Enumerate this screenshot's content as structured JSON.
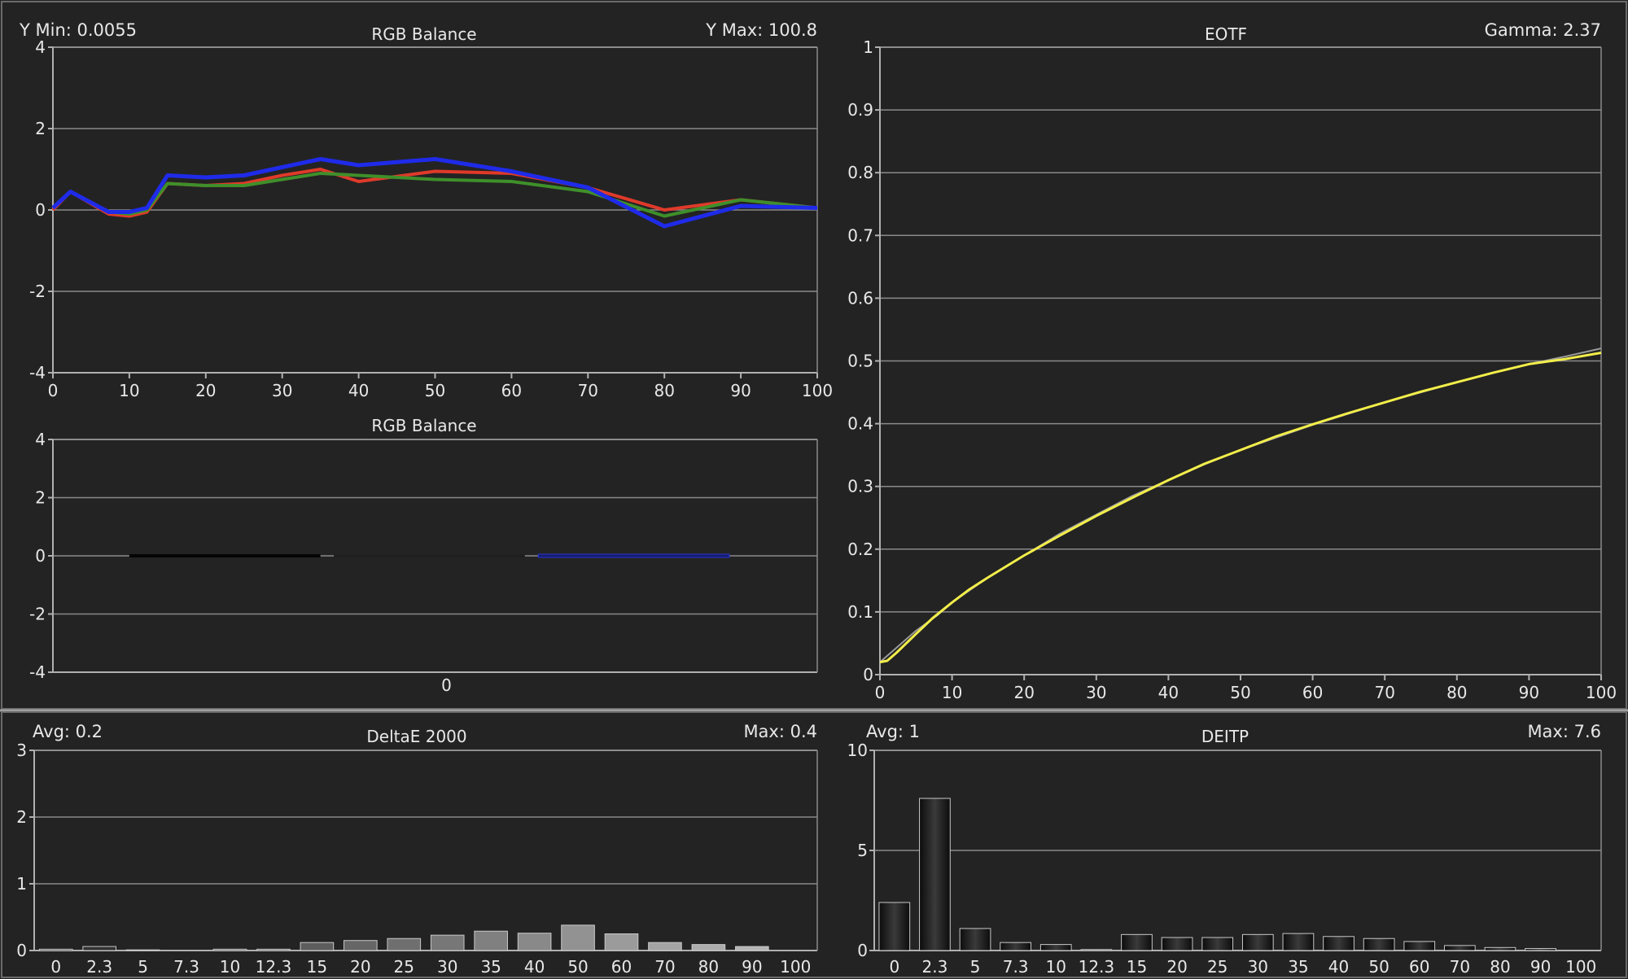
{
  "panels": {
    "rgb_top": {
      "title": "RGB Balance",
      "left_stat": "Y Min: 0.0055",
      "right_stat": "Y Max: 100.8"
    },
    "rgb_bottom": {
      "title": "RGB Balance"
    },
    "eotf": {
      "title": "EOTF",
      "right_stat": "Gamma: 2.37"
    },
    "de2000": {
      "title": "DeltaE 2000",
      "left_stat": "Avg: 0.2",
      "right_stat": "Max: 0.4"
    },
    "deitp": {
      "title": "DEITP",
      "left_stat": "Avg: 1",
      "right_stat": "Max: 7.6"
    }
  },
  "colors": {
    "background": "#232323",
    "grid": "#8a8a8a",
    "red": "#e03a2a",
    "green": "#3f8f2a",
    "blue": "#1f2be8",
    "yellow": "#f2ee4a",
    "reference": "#9a9a9a"
  },
  "chart_data": [
    {
      "id": "rgb_top",
      "type": "line",
      "title": "RGB Balance",
      "xlim": [
        0,
        100
      ],
      "ylim": [
        -4,
        4
      ],
      "xticks": [
        "0",
        "10",
        "20",
        "30",
        "40",
        "50",
        "60",
        "70",
        "80",
        "90",
        "100"
      ],
      "yticks": [
        "4",
        "2",
        "0",
        "-2",
        "-4"
      ],
      "grid": true,
      "series": [
        {
          "color": "red",
          "x": [
            0,
            2.3,
            7.3,
            10,
            12.3,
            15,
            20,
            25,
            30,
            35,
            40,
            50,
            60,
            70,
            80,
            90,
            100
          ],
          "y": [
            0.0,
            0.45,
            -0.1,
            -0.15,
            -0.05,
            0.65,
            0.6,
            0.65,
            0.85,
            1.0,
            0.7,
            0.95,
            0.9,
            0.55,
            0.0,
            0.25,
            0.05
          ]
        },
        {
          "color": "green",
          "x": [
            0,
            2.3,
            7.3,
            10,
            12.3,
            15,
            20,
            25,
            30,
            35,
            40,
            50,
            60,
            70,
            80,
            90,
            100
          ],
          "y": [
            0.05,
            0.45,
            -0.05,
            -0.1,
            0.0,
            0.65,
            0.6,
            0.6,
            0.75,
            0.9,
            0.85,
            0.75,
            0.7,
            0.45,
            -0.15,
            0.25,
            0.05
          ]
        },
        {
          "color": "blue",
          "x": [
            0,
            2.3,
            7.3,
            10,
            12.3,
            15,
            20,
            25,
            30,
            35,
            40,
            50,
            60,
            70,
            80,
            90,
            100
          ],
          "y": [
            0.05,
            0.45,
            -0.05,
            -0.05,
            0.05,
            0.85,
            0.8,
            0.85,
            1.05,
            1.25,
            1.1,
            1.25,
            0.95,
            0.55,
            -0.4,
            0.1,
            0.05
          ]
        }
      ]
    },
    {
      "id": "rgb_bottom",
      "type": "bar",
      "title": "RGB Balance",
      "categories": [
        "0"
      ],
      "ylim": [
        -4,
        4
      ],
      "yticks": [
        "4",
        "2",
        "0",
        "-2",
        "-4"
      ],
      "grid": true,
      "series": [
        {
          "color": "black",
          "values": [
            0.0
          ]
        },
        {
          "color": "green",
          "values": [
            0.0
          ]
        },
        {
          "color": "blue",
          "values": [
            0.0
          ]
        }
      ]
    },
    {
      "id": "eotf",
      "type": "line",
      "title": "EOTF",
      "xlim": [
        0,
        100
      ],
      "ylim": [
        0,
        1
      ],
      "xticks": [
        "0",
        "10",
        "20",
        "30",
        "40",
        "50",
        "60",
        "70",
        "80",
        "90",
        "100"
      ],
      "yticks": [
        "1",
        "0.9",
        "0.8",
        "0.7",
        "0.6",
        "0.5",
        "0.4",
        "0.3",
        "0.2",
        "0.1",
        "0"
      ],
      "grid": true,
      "series": [
        {
          "color": "reference",
          "x": [
            0,
            2,
            5,
            8,
            10,
            15,
            20,
            25,
            30,
            35,
            40,
            45,
            50,
            55,
            60,
            65,
            70,
            75,
            80,
            85,
            90,
            95,
            100
          ],
          "y": [
            0.02,
            0.04,
            0.07,
            0.095,
            0.115,
            0.155,
            0.19,
            0.225,
            0.255,
            0.285,
            0.31,
            0.335,
            0.358,
            0.378,
            0.398,
            0.416,
            0.434,
            0.45,
            0.466,
            0.481,
            0.495,
            0.507,
            0.52
          ]
        },
        {
          "color": "yellow",
          "x": [
            0,
            1,
            2.3,
            5,
            7.3,
            10,
            12.3,
            15,
            20,
            25,
            30,
            35,
            40,
            45,
            50,
            55,
            60,
            65,
            70,
            75,
            80,
            85,
            90,
            95,
            100
          ],
          "y": [
            0.02,
            0.022,
            0.035,
            0.065,
            0.09,
            0.115,
            0.135,
            0.155,
            0.19,
            0.222,
            0.253,
            0.282,
            0.31,
            0.336,
            0.358,
            0.38,
            0.399,
            0.417,
            0.434,
            0.451,
            0.466,
            0.481,
            0.495,
            0.503,
            0.513
          ]
        }
      ]
    },
    {
      "id": "de2000",
      "type": "bar",
      "title": "DeltaE 2000",
      "categories": [
        "0",
        "2.3",
        "5",
        "7.3",
        "10",
        "12.3",
        "15",
        "20",
        "25",
        "30",
        "35",
        "40",
        "50",
        "60",
        "70",
        "80",
        "90",
        "100"
      ],
      "values": [
        0.02,
        0.06,
        0.01,
        0.0,
        0.02,
        0.02,
        0.12,
        0.15,
        0.18,
        0.23,
        0.29,
        0.26,
        0.38,
        0.25,
        0.12,
        0.09,
        0.06,
        0.0
      ],
      "ylim": [
        0,
        3
      ],
      "yticks": [
        "3",
        "2",
        "1",
        "0"
      ],
      "grid": true
    },
    {
      "id": "deitp",
      "type": "bar",
      "title": "DEITP",
      "categories": [
        "0",
        "2.3",
        "5",
        "7.3",
        "10",
        "12.3",
        "15",
        "20",
        "25",
        "30",
        "35",
        "40",
        "50",
        "60",
        "70",
        "80",
        "90",
        "100"
      ],
      "values": [
        2.4,
        7.6,
        1.1,
        0.4,
        0.3,
        0.05,
        0.8,
        0.65,
        0.65,
        0.8,
        0.85,
        0.7,
        0.6,
        0.45,
        0.25,
        0.15,
        0.1,
        0.0
      ],
      "ylim": [
        0,
        10
      ],
      "yticks": [
        "10",
        "5",
        "0"
      ],
      "grid": true
    }
  ]
}
